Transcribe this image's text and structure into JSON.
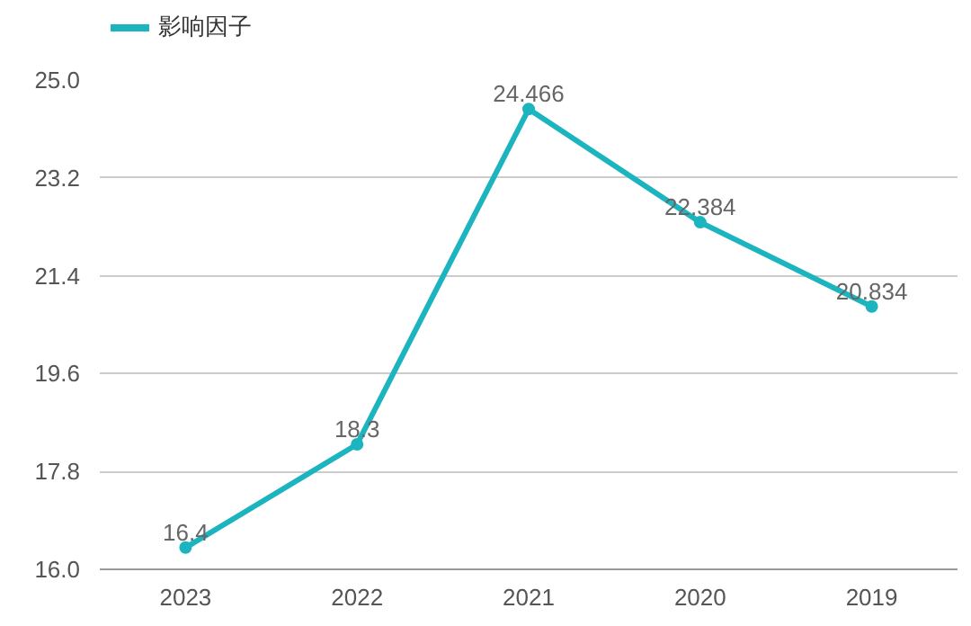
{
  "chart_data": {
    "type": "line",
    "categories": [
      "2023",
      "2022",
      "2021",
      "2020",
      "2019"
    ],
    "series": [
      {
        "name": "影响因子",
        "color": "#1cb5bf",
        "values": [
          16.4,
          18.3,
          24.466,
          22.384,
          20.834
        ]
      }
    ],
    "ylim": [
      16.0,
      25.0
    ],
    "yticks": [
      {
        "value": 16.0,
        "label": "16.0"
      },
      {
        "value": 17.8,
        "label": "17.8"
      },
      {
        "value": 19.6,
        "label": "19.6"
      },
      {
        "value": 21.4,
        "label": "21.4"
      },
      {
        "value": 23.2,
        "label": "23.2"
      },
      {
        "value": 25.0,
        "label": "25.0"
      }
    ],
    "grid": "y",
    "legend": "top left",
    "data_labels": true,
    "marker": "circle",
    "line_style": "solid"
  }
}
